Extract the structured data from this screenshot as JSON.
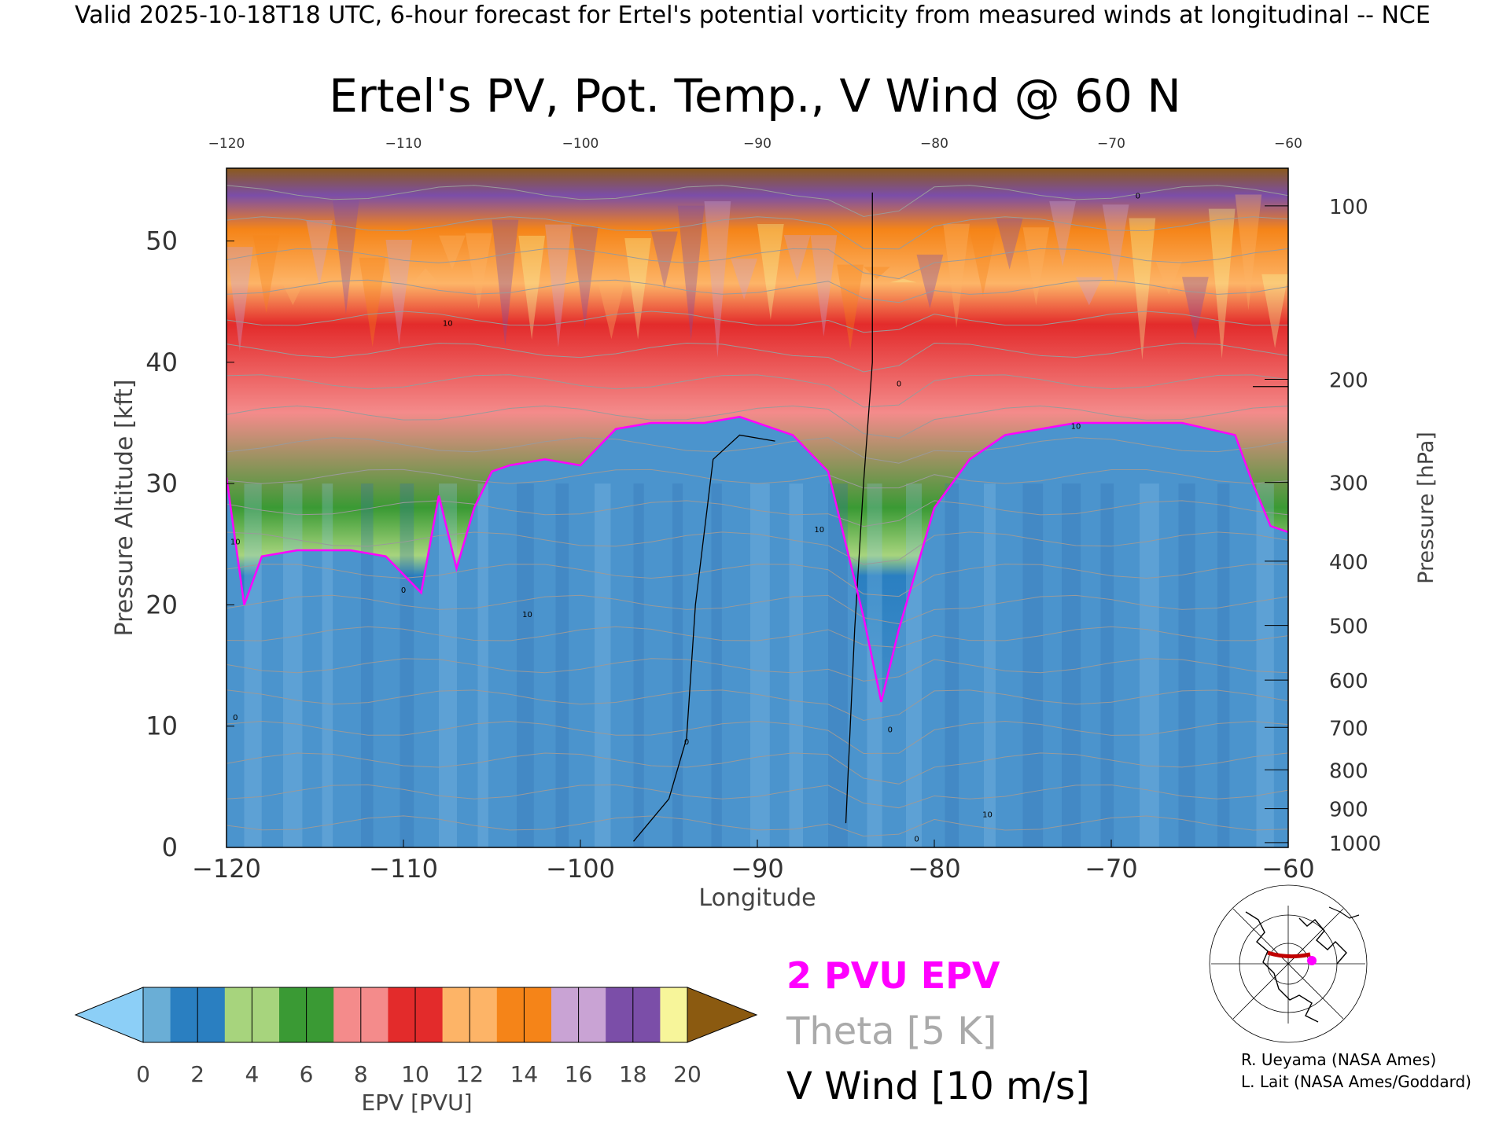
{
  "header": {
    "valid_line": "Valid 2025-10-18T18 UTC, 6-hour forecast for Ertel's potential vorticity from measured winds at longitudinal -- NCE"
  },
  "chart_data": {
    "type": "heatmap",
    "title": "Ertel's PV, Pot. Temp., V Wind @ 60 N",
    "xlabel": "Longitude",
    "ylabel": "Pressure Altitude [kft]",
    "y2label": "Pressure [hPa]",
    "xlim": [
      -120,
      -60
    ],
    "ylim": [
      0,
      56
    ],
    "x_ticks": [
      -120,
      -110,
      -100,
      -90,
      -80,
      -70,
      -60
    ],
    "y_ticks": [
      0,
      10,
      20,
      30,
      40,
      50
    ],
    "pressure_ticks": [
      {
        "hpa": 100,
        "kft": 52.9
      },
      {
        "hpa": 200,
        "kft": 38.6
      },
      {
        "hpa": 300,
        "kft": 30.1
      },
      {
        "hpa": 400,
        "kft": 23.6
      },
      {
        "hpa": 500,
        "kft": 18.3
      },
      {
        "hpa": 600,
        "kft": 13.8
      },
      {
        "hpa": 700,
        "kft": 9.9
      },
      {
        "hpa": 800,
        "kft": 6.4
      },
      {
        "hpa": 900,
        "kft": 3.2
      },
      {
        "hpa": 1000,
        "kft": 0.4
      }
    ],
    "tropopause_2pvu_kft": [
      [
        -120,
        30.5
      ],
      [
        -119,
        20
      ],
      [
        -118,
        24
      ],
      [
        -116,
        24.5
      ],
      [
        -113,
        24.5
      ],
      [
        -111,
        24
      ],
      [
        -109,
        21
      ],
      [
        -108,
        29
      ],
      [
        -107,
        23
      ],
      [
        -106,
        28
      ],
      [
        -105,
        31
      ],
      [
        -104,
        31.5
      ],
      [
        -102,
        32
      ],
      [
        -100,
        31.5
      ],
      [
        -98,
        34.5
      ],
      [
        -96,
        35
      ],
      [
        -93,
        35
      ],
      [
        -91,
        35.5
      ],
      [
        -88,
        34
      ],
      [
        -86,
        31
      ],
      [
        -85,
        25
      ],
      [
        -84,
        19
      ],
      [
        -83,
        12
      ],
      [
        -82,
        18
      ],
      [
        -81,
        23
      ],
      [
        -80,
        28
      ],
      [
        -78,
        32
      ],
      [
        -76,
        34
      ],
      [
        -74,
        34.5
      ],
      [
        -72,
        35
      ],
      [
        -69,
        35
      ],
      [
        -66,
        35
      ],
      [
        -63,
        34
      ],
      [
        -62,
        30
      ],
      [
        -61,
        26.5
      ],
      [
        -60,
        26
      ]
    ],
    "v_wind_zero_contours": [
      [
        [
          -83.5,
          54
        ],
        [
          -83.5,
          40
        ],
        [
          -84,
          30
        ],
        [
          -84.5,
          18
        ],
        [
          -85,
          2
        ]
      ],
      [
        [
          -97,
          0.5
        ],
        [
          -95,
          4
        ],
        [
          -94,
          9
        ],
        [
          -93.5,
          20
        ],
        [
          -92.5,
          32
        ],
        [
          -91,
          34
        ],
        [
          -89,
          33.5
        ]
      ],
      [
        [
          -62,
          38
        ],
        [
          -60,
          38
        ]
      ]
    ],
    "v_wind_contour_labels": [
      {
        "text": "10",
        "lon": -107.5,
        "kft": 43
      },
      {
        "text": "10",
        "lon": -72,
        "kft": 34.5
      },
      {
        "text": "0",
        "lon": -82,
        "kft": 38
      },
      {
        "text": "10",
        "lon": -86.5,
        "kft": 26
      },
      {
        "text": "0",
        "lon": -110,
        "kft": 21
      },
      {
        "text": "10",
        "lon": -103,
        "kft": 19
      },
      {
        "text": "0",
        "lon": -94,
        "kft": 8.5
      },
      {
        "text": "0",
        "lon": -82.5,
        "kft": 9.5
      },
      {
        "text": "10",
        "lon": -77,
        "kft": 2.5
      },
      {
        "text": "0",
        "lon": -81,
        "kft": 0.5
      },
      {
        "text": "0",
        "lon": -68.5,
        "kft": 53.5
      },
      {
        "text": "0",
        "lon": -119.5,
        "kft": 10.5
      },
      {
        "text": "10",
        "lon": -119.5,
        "kft": 25
      }
    ],
    "colorbar": {
      "label": "EPV [PVU]",
      "ticks": [
        "0",
        "2",
        "4",
        "6",
        "8",
        "10",
        "12",
        "14",
        "16",
        "18",
        "20"
      ],
      "colors": [
        "#6aaed6",
        "#2a7fc1",
        "#a7d47d",
        "#3a9a34",
        "#f48b8b",
        "#e32b2b",
        "#fdb467",
        "#f58418",
        "#c9a3d4",
        "#7b4ea8",
        "#f7f59a",
        "#8b5a1a"
      ],
      "under_color": "#8ccff7",
      "over_color": "#8b5a10"
    },
    "legend": {
      "epv": "2 PVU EPV",
      "theta": "Theta [5 K]",
      "wind": "V Wind [10 m/s]",
      "colors": {
        "epv": "#ff00ff",
        "theta": "#aaaaaa",
        "wind": "#000000"
      }
    }
  },
  "credits": {
    "line1": "R. Ueyama (NASA Ames)",
    "line2": "L. Lait (NASA Ames/Goddard)"
  }
}
